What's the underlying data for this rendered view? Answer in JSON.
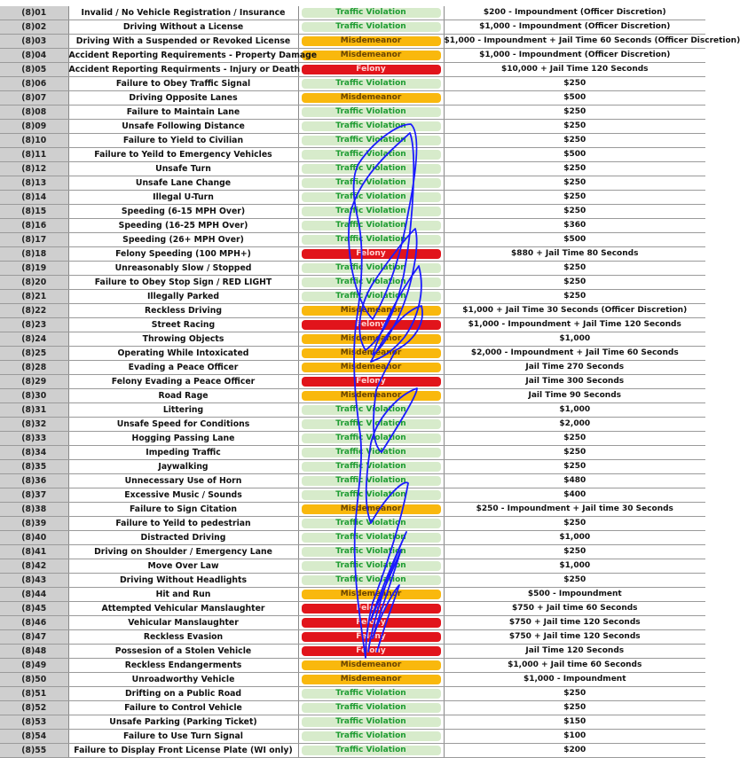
{
  "colors": {
    "traffic_violation_bg": "#d7ebcb",
    "traffic_violation_text": "#1f9c33",
    "misdemeanor_bg": "#f9b80d",
    "felony_bg": "#e1141b",
    "code_column_bg": "#cfcfcf",
    "scribble_ink": "#1a1aff"
  },
  "rows": [
    {
      "code": "(8)01",
      "name": "Invalid / No Vehicle Registration / Insurance",
      "cls": "Traffic Violation",
      "type": "tv",
      "penalty": "$200 - Impoundment (Officer Discretion)"
    },
    {
      "code": "(8)02",
      "name": "Driving Without a License",
      "cls": "Traffic Violation",
      "type": "tv",
      "penalty": "$1,000 - Impoundment (Officer Discretion)"
    },
    {
      "code": "(8)03",
      "name": "Driving With a Suspended or Revoked License",
      "cls": "Misdemeanor",
      "type": "mis",
      "penalty": "$1,000 - Impoundment + Jail Time 60 Seconds (Officer Discretion)"
    },
    {
      "code": "(8)04",
      "name": "Accident Reporting Requirements - Property Damage",
      "cls": "Misdemeanor",
      "type": "mis",
      "penalty": "$1,000 - Impoundment (Officer Discretion)"
    },
    {
      "code": "(8)05",
      "name": "Accident Reporting Requirments - Injury or Death",
      "cls": "Felony",
      "type": "fel",
      "penalty": "$10,000 + Jail Time 120 Seconds"
    },
    {
      "code": "(8)06",
      "name": "Failure to Obey Traffic Signal",
      "cls": "Traffic Violation",
      "type": "tv",
      "penalty": "$250"
    },
    {
      "code": "(8)07",
      "name": "Driving Opposite Lanes",
      "cls": "Misdemeanor",
      "type": "mis",
      "penalty": "$500"
    },
    {
      "code": "(8)08",
      "name": "Failure to Maintain Lane",
      "cls": "Traffic Violation",
      "type": "tv",
      "penalty": "$250"
    },
    {
      "code": "(8)09",
      "name": "Unsafe Following Distance",
      "cls": "Traffic Violation",
      "type": "tv",
      "penalty": "$250"
    },
    {
      "code": "(8)10",
      "name": "Failure to Yield to Civilian",
      "cls": "Traffic Violation",
      "type": "tv",
      "penalty": "$250"
    },
    {
      "code": "(8)11",
      "name": "Failure to Yeild to Emergency Vehicles",
      "cls": "Traffic Violation",
      "type": "tv",
      "penalty": "$500"
    },
    {
      "code": "(8)12",
      "name": "Unsafe Turn",
      "cls": "Traffic Violation",
      "type": "tv",
      "penalty": "$250"
    },
    {
      "code": "(8)13",
      "name": "Unsafe Lane Change",
      "cls": "Traffic Violation",
      "type": "tv",
      "penalty": "$250"
    },
    {
      "code": "(8)14",
      "name": "Illegal U-Turn",
      "cls": "Traffic Violation",
      "type": "tv",
      "penalty": "$250"
    },
    {
      "code": "(8)15",
      "name": "Speeding (6-15 MPH Over)",
      "cls": "Traffic Violation",
      "type": "tv",
      "penalty": "$250"
    },
    {
      "code": "(8)16",
      "name": "Speeding (16-25 MPH Over)",
      "cls": "Traffic Violation",
      "type": "tv",
      "penalty": "$360"
    },
    {
      "code": "(8)17",
      "name": "Speeding (26+ MPH Over)",
      "cls": "Traffic Violation",
      "type": "tv",
      "penalty": "$500"
    },
    {
      "code": "(8)18",
      "name": "Felony Speeding (100 MPH+)",
      "cls": "Felony",
      "type": "fel",
      "penalty": "$880 + Jail Time 80 Seconds"
    },
    {
      "code": "(8)19",
      "name": "Unreasonably Slow / Stopped",
      "cls": "Traffic Violation",
      "type": "tv",
      "penalty": "$250"
    },
    {
      "code": "(8)20",
      "name": "Failure to Obey Stop Sign / RED LIGHT",
      "cls": "Traffic Violation",
      "type": "tv",
      "penalty": "$250"
    },
    {
      "code": "(8)21",
      "name": "Illegally Parked",
      "cls": "Traffic Violation",
      "type": "tv",
      "penalty": "$250"
    },
    {
      "code": "(8)22",
      "name": "Reckless Driving",
      "cls": "Misdemeanor",
      "type": "mis",
      "penalty": "$1,000 + Jail Time 30 Seconds (Officer Discretion)"
    },
    {
      "code": "(8)23",
      "name": "Street Racing",
      "cls": "Felony",
      "type": "fel",
      "penalty": "$1,000 - Impoundment + Jail Time 120 Seconds"
    },
    {
      "code": "(8)24",
      "name": "Throwing Objects",
      "cls": "Misdemeanor",
      "type": "mis",
      "penalty": "$1,000"
    },
    {
      "code": "(8)25",
      "name": "Operating While Intoxicated",
      "cls": "Misdemeanor",
      "type": "mis",
      "penalty": "$2,000 - Impoundment + Jail Time 60 Seconds"
    },
    {
      "code": "(8)28",
      "name": "Evading a Peace Officer",
      "cls": "Misdemeanor",
      "type": "mis",
      "penalty": "Jail Time 270 Seconds"
    },
    {
      "code": "(8)29",
      "name": "Felony Evading a Peace Officer",
      "cls": "Felony",
      "type": "fel",
      "penalty": "Jail Time 300 Seconds"
    },
    {
      "code": "(8)30",
      "name": "Road Rage",
      "cls": "Misdemeanor",
      "type": "mis",
      "penalty": "Jail Time 90 Seconds"
    },
    {
      "code": "(8)31",
      "name": "Littering",
      "cls": "Traffic Violation",
      "type": "tv",
      "penalty": "$1,000"
    },
    {
      "code": "(8)32",
      "name": "Unsafe Speed for Conditions",
      "cls": "Traffic Violation",
      "type": "tv",
      "penalty": "$2,000"
    },
    {
      "code": "(8)33",
      "name": "Hogging Passing Lane",
      "cls": "Traffic Violation",
      "type": "tv",
      "penalty": "$250"
    },
    {
      "code": "(8)34",
      "name": "Impeding Traffic",
      "cls": "Traffic Violation",
      "type": "tv",
      "penalty": "$250"
    },
    {
      "code": "(8)35",
      "name": "Jaywalking",
      "cls": "Traffic Violation",
      "type": "tv",
      "penalty": "$250"
    },
    {
      "code": "(8)36",
      "name": "Unnecessary Use of Horn",
      "cls": "Traffic Violation",
      "type": "tv",
      "penalty": "$480"
    },
    {
      "code": "(8)37",
      "name": "Excessive Music / Sounds",
      "cls": "Traffic Violation",
      "type": "tv",
      "penalty": "$400"
    },
    {
      "code": "(8)38",
      "name": "Failure to Sign Citation",
      "cls": "Misdemeanor",
      "type": "mis",
      "penalty": "$250 - Impoundment + Jail time 30 Seconds"
    },
    {
      "code": "(8)39",
      "name": "Failure to Yeild to pedestrian",
      "cls": "Traffic Violation",
      "type": "tv",
      "penalty": "$250"
    },
    {
      "code": "(8)40",
      "name": "Distracted Driving",
      "cls": "Traffic Violation",
      "type": "tv",
      "penalty": "$1,000"
    },
    {
      "code": "(8)41",
      "name": "Driving on Shoulder / Emergency Lane",
      "cls": "Traffic Violation",
      "type": "tv",
      "penalty": "$250"
    },
    {
      "code": "(8)42",
      "name": "Move Over Law",
      "cls": "Traffic Violation",
      "type": "tv",
      "penalty": "$1,000"
    },
    {
      "code": "(8)43",
      "name": "Driving Without Headlights",
      "cls": "Traffic Violation",
      "type": "tv",
      "penalty": "$250"
    },
    {
      "code": "(8)44",
      "name": "Hit and Run",
      "cls": "Misdemeanor",
      "type": "mis",
      "penalty": "$500 - Impoundment"
    },
    {
      "code": "(8)45",
      "name": "Attempted Vehicular Manslaughter",
      "cls": "Felony",
      "type": "fel",
      "penalty": "$750 + Jail time 60 Seconds"
    },
    {
      "code": "(8)46",
      "name": "Vehicular Manslaughter",
      "cls": "Felony",
      "type": "fel",
      "penalty": "$750 + Jail time 120 Seconds"
    },
    {
      "code": "(8)47",
      "name": "Reckless Evasion",
      "cls": "Felony",
      "type": "fel",
      "penalty": "$750 + Jail time 120 Seconds"
    },
    {
      "code": "(8)48",
      "name": "Possesion of a Stolen Vehicle",
      "cls": "Felony",
      "type": "fel",
      "penalty": "Jail Time 120 Seconds"
    },
    {
      "code": "(8)49",
      "name": "Reckless Endangerments",
      "cls": "Misdemeanor",
      "type": "mis",
      "penalty": "$1,000 + Jail time 60 Seconds"
    },
    {
      "code": "(8)50",
      "name": "Unroadworthy Vehicle",
      "cls": "Misdemeanor",
      "type": "mis",
      "penalty": "$1,000 - Impoundment"
    },
    {
      "code": "(8)51",
      "name": "Drifting on a Public Road",
      "cls": "Traffic Violation",
      "type": "tv",
      "penalty": "$250"
    },
    {
      "code": "(8)52",
      "name": "Failure to Control Vehicle",
      "cls": "Traffic Violation",
      "type": "tv",
      "penalty": "$250"
    },
    {
      "code": "(8)53",
      "name": "Unsafe Parking (Parking Ticket)",
      "cls": "Traffic Violation",
      "type": "tv",
      "penalty": "$150"
    },
    {
      "code": "(8)54",
      "name": "Failure to Use Turn Signal",
      "cls": "Traffic Violation",
      "type": "tv",
      "penalty": "$100"
    },
    {
      "code": "(8)55",
      "name": "Failure to Display Front License Plate (WI only)",
      "cls": "Traffic Violation",
      "type": "tv",
      "penalty": "$200"
    }
  ]
}
